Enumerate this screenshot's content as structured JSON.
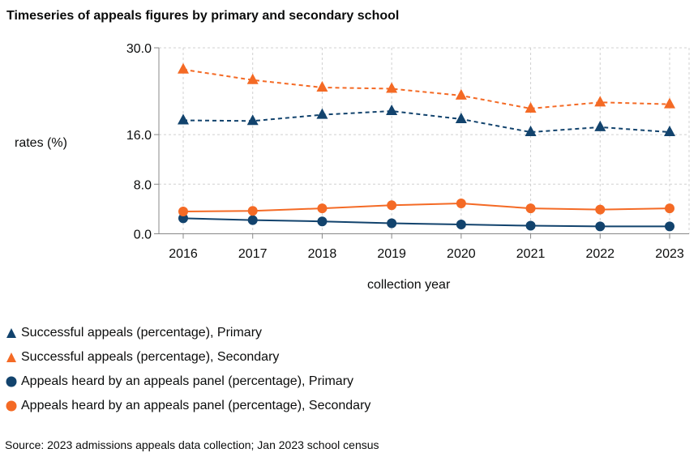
{
  "chart_data": {
    "type": "line",
    "title": "Timeseries of appeals figures by primary and secondary school",
    "xlabel": "collection year",
    "ylabel": "rates (%)",
    "ylim": [
      0,
      30
    ],
    "yticks": [
      "0.0",
      "8.0",
      "16.0",
      "30.0"
    ],
    "ytick_values": [
      0,
      8,
      16,
      30
    ],
    "categories": [
      "2016",
      "2017",
      "2018",
      "2019",
      "2020",
      "2021",
      "2022",
      "2023"
    ],
    "grid": true,
    "legend_position": "bottom",
    "series": [
      {
        "name": "Successful appeals (percentage), Primary",
        "color": "#12436d",
        "marker": "triangle",
        "dash": true,
        "values": [
          18.3,
          18.2,
          19.2,
          19.8,
          18.5,
          16.4,
          17.2,
          16.4
        ]
      },
      {
        "name": "Successful appeals (percentage), Secondary",
        "color": "#f46a25",
        "marker": "triangle",
        "dash": true,
        "values": [
          26.5,
          24.8,
          23.6,
          23.4,
          22.3,
          20.2,
          21.2,
          20.9
        ]
      },
      {
        "name": "Appeals heard by an appeals panel (percentage), Primary",
        "color": "#12436d",
        "marker": "circle",
        "dash": false,
        "values": [
          2.5,
          2.2,
          2.0,
          1.7,
          1.5,
          1.3,
          1.2,
          1.2
        ]
      },
      {
        "name": "Appeals heard by an appeals panel (percentage), Secondary",
        "color": "#f46a25",
        "marker": "circle",
        "dash": false,
        "values": [
          3.6,
          3.7,
          4.1,
          4.6,
          4.9,
          4.1,
          3.9,
          4.1
        ]
      }
    ]
  },
  "source": "Source: 2023 admissions appeals data collection; Jan 2023 school census"
}
